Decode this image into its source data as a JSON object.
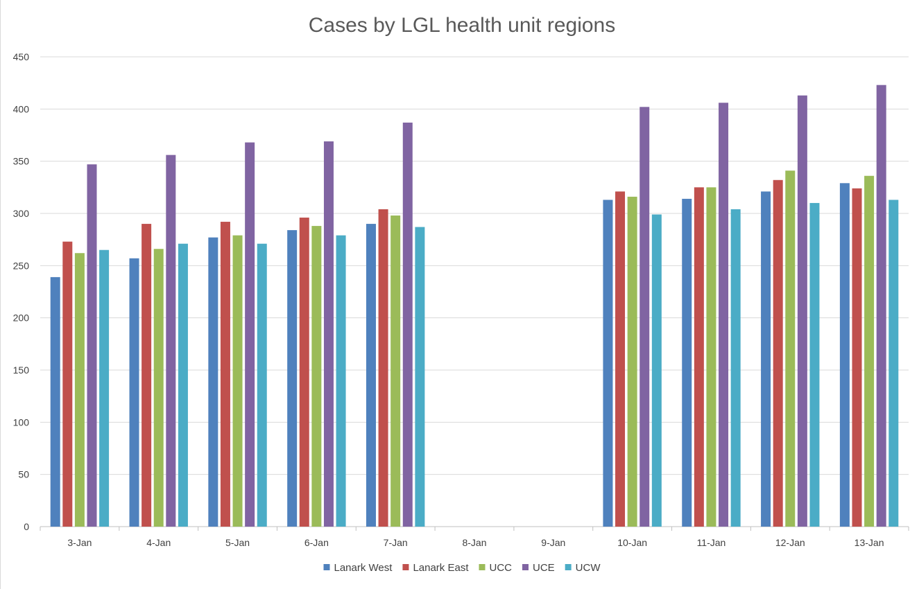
{
  "chart_data": {
    "type": "bar",
    "title": "Cases by LGL health unit regions",
    "xlabel": "",
    "ylabel": "",
    "ylim": [
      0,
      450
    ],
    "yticks": [
      0,
      50,
      100,
      150,
      200,
      250,
      300,
      350,
      400,
      450
    ],
    "grid": true,
    "legend_position": "bottom",
    "categories": [
      "3-Jan",
      "4-Jan",
      "5-Jan",
      "6-Jan",
      "7-Jan",
      "8-Jan",
      "9-Jan",
      "10-Jan",
      "11-Jan",
      "12-Jan",
      "13-Jan"
    ],
    "series": [
      {
        "name": "Lanark West",
        "color": "#4f81bd",
        "values": [
          239,
          257,
          277,
          284,
          290,
          null,
          null,
          313,
          314,
          321,
          329
        ]
      },
      {
        "name": "Lanark East",
        "color": "#c0504d",
        "values": [
          273,
          290,
          292,
          296,
          304,
          null,
          null,
          321,
          325,
          332,
          324
        ]
      },
      {
        "name": "UCC",
        "color": "#9bbb59",
        "values": [
          262,
          266,
          279,
          288,
          298,
          null,
          null,
          316,
          325,
          341,
          336
        ]
      },
      {
        "name": "UCE",
        "color": "#8064a2",
        "values": [
          347,
          356,
          368,
          369,
          387,
          null,
          null,
          402,
          406,
          413,
          423
        ]
      },
      {
        "name": "UCW",
        "color": "#4bacc6",
        "values": [
          265,
          271,
          271,
          279,
          287,
          null,
          null,
          299,
          304,
          310,
          313
        ]
      }
    ]
  }
}
